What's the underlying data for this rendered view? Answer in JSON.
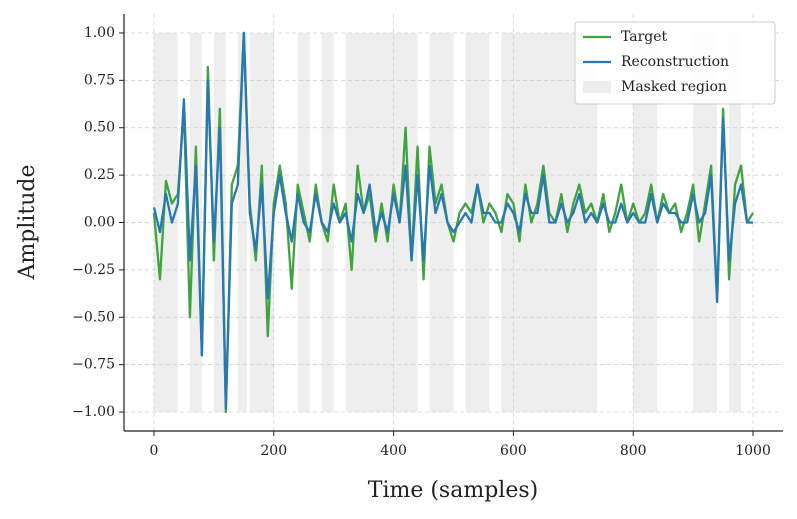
{
  "chart_data": {
    "type": "line",
    "xlabel": "Time (samples)",
    "ylabel": "Amplitude",
    "x": [
      0,
      10,
      20,
      30,
      40,
      50,
      60,
      70,
      80,
      90,
      100,
      110,
      120,
      130,
      140,
      150,
      160,
      170,
      180,
      190,
      200,
      210,
      220,
      230,
      240,
      250,
      260,
      270,
      280,
      290,
      300,
      310,
      320,
      330,
      340,
      350,
      360,
      370,
      380,
      390,
      400,
      410,
      420,
      430,
      440,
      450,
      460,
      470,
      480,
      490,
      500,
      510,
      520,
      530,
      540,
      550,
      560,
      570,
      580,
      590,
      600,
      610,
      620,
      630,
      640,
      650,
      660,
      670,
      680,
      690,
      700,
      710,
      720,
      730,
      740,
      750,
      760,
      770,
      780,
      790,
      800,
      810,
      820,
      830,
      840,
      850,
      860,
      870,
      880,
      890,
      900,
      910,
      920,
      930,
      940,
      950,
      960,
      970,
      980,
      990,
      1000
    ],
    "series": [
      {
        "name": "Target",
        "color": "#3fa33f",
        "values": [
          0.05,
          -0.3,
          0.22,
          0.1,
          0.15,
          0.6,
          -0.5,
          0.4,
          -0.7,
          0.82,
          -0.2,
          0.6,
          -1.0,
          0.2,
          0.3,
          1.0,
          0.1,
          -0.2,
          0.3,
          -0.6,
          0.1,
          0.3,
          0.1,
          -0.35,
          0.2,
          0.05,
          -0.1,
          0.2,
          0.0,
          -0.1,
          0.2,
          0.0,
          0.1,
          -0.25,
          0.3,
          0.05,
          0.15,
          -0.1,
          0.1,
          -0.1,
          0.2,
          0.0,
          0.5,
          -0.2,
          0.4,
          -0.3,
          0.4,
          0.1,
          0.2,
          0.0,
          -0.1,
          0.05,
          0.1,
          0.05,
          0.2,
          0.0,
          0.1,
          0.05,
          -0.05,
          0.15,
          0.1,
          -0.1,
          0.2,
          0.0,
          0.1,
          0.3,
          0.05,
          0.0,
          0.15,
          -0.05,
          0.1,
          0.2,
          0.05,
          0.1,
          0.0,
          0.15,
          -0.05,
          0.05,
          0.2,
          0.0,
          0.1,
          0.0,
          0.05,
          0.2,
          0.0,
          0.15,
          0.05,
          0.1,
          -0.05,
          0.05,
          0.2,
          -0.1,
          0.1,
          0.3,
          -0.4,
          0.6,
          -0.3,
          0.2,
          0.3,
          0.0,
          0.05
        ]
      },
      {
        "name": "Reconstruction",
        "color": "#2878b5",
        "values": [
          0.08,
          -0.05,
          0.15,
          0.0,
          0.1,
          0.65,
          -0.2,
          0.3,
          -0.7,
          0.75,
          -0.1,
          0.5,
          -0.98,
          0.1,
          0.2,
          1.0,
          0.05,
          -0.15,
          0.2,
          -0.4,
          0.05,
          0.25,
          0.05,
          -0.1,
          0.15,
          0.0,
          -0.05,
          0.15,
          0.0,
          -0.05,
          0.1,
          0.0,
          0.05,
          -0.1,
          0.15,
          0.05,
          0.2,
          -0.05,
          0.05,
          -0.05,
          0.15,
          0.0,
          0.3,
          -0.2,
          0.25,
          -0.2,
          0.3,
          0.05,
          0.15,
          0.0,
          -0.05,
          0.0,
          0.05,
          0.0,
          0.2,
          0.05,
          0.05,
          0.0,
          0.0,
          0.1,
          0.05,
          -0.05,
          0.15,
          0.05,
          0.05,
          0.25,
          0.0,
          0.0,
          0.1,
          0.0,
          0.05,
          0.15,
          0.0,
          0.05,
          0.0,
          0.1,
          0.0,
          0.0,
          0.1,
          0.0,
          0.05,
          0.0,
          0.0,
          0.15,
          0.0,
          0.1,
          0.05,
          0.05,
          0.0,
          0.0,
          0.15,
          0.0,
          0.05,
          0.25,
          -0.42,
          0.55,
          -0.2,
          0.1,
          0.2,
          0.0,
          0.0
        ]
      }
    ],
    "masked_label": "Masked region",
    "masked_color": "#eeeeee",
    "masked_regions": [
      [
        0,
        40
      ],
      [
        60,
        80
      ],
      [
        100,
        120
      ],
      [
        140,
        155
      ],
      [
        160,
        200
      ],
      [
        240,
        260
      ],
      [
        280,
        300
      ],
      [
        320,
        440
      ],
      [
        460,
        500
      ],
      [
        520,
        560
      ],
      [
        580,
        720
      ],
      [
        720,
        740
      ],
      [
        800,
        840
      ],
      [
        900,
        940
      ],
      [
        960,
        980
      ]
    ],
    "xlim": [
      -50,
      1050
    ],
    "xticks": [
      0,
      200,
      400,
      600,
      800,
      1000
    ],
    "ylim": [
      -1.1,
      1.1
    ],
    "yticks": [
      {
        "value": -1,
        "label": "−1.00"
      },
      {
        "value": -0.75,
        "label": "−0.75"
      },
      {
        "value": -0.5,
        "label": "−0.50"
      },
      {
        "value": -0.25,
        "label": "−0.25"
      },
      {
        "value": 0,
        "label": "0.00"
      },
      {
        "value": 0.25,
        "label": "0.25"
      },
      {
        "value": 0.5,
        "label": "0.50"
      },
      {
        "value": 0.75,
        "label": "0.75"
      },
      {
        "value": 1,
        "label": "1.00"
      }
    ],
    "grid": true,
    "legend": "upper right"
  }
}
